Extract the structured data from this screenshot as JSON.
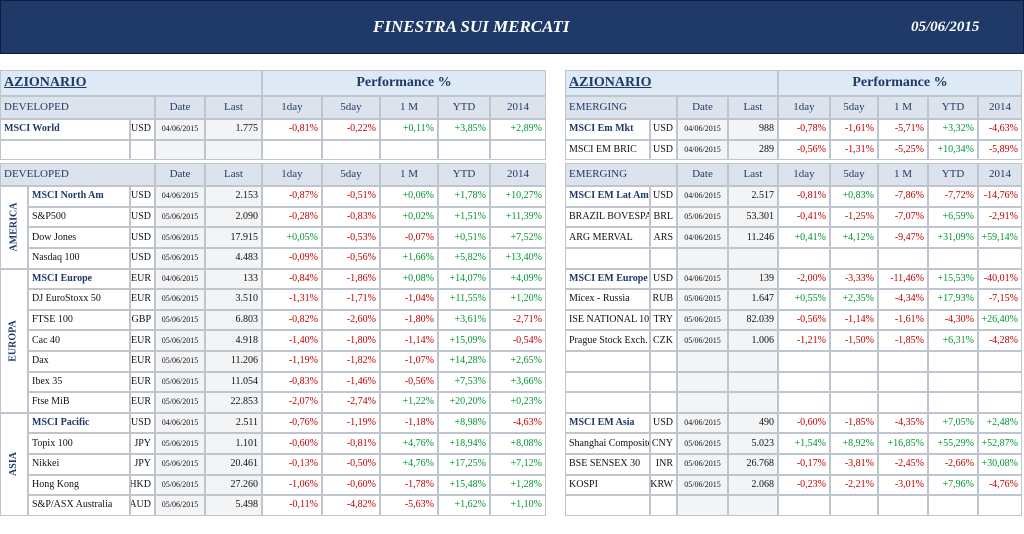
{
  "header": {
    "title": "FINESTRA SUI MERCATI",
    "date": "05/06/2015"
  },
  "panels": [
    {
      "title": "AZIONARIO",
      "performance": "Performance %",
      "blocks": [
        {
          "columns": [
            "DEVELOPED",
            "Date",
            "Last",
            "1day",
            "5day",
            "1 M",
            "YTD",
            "2014"
          ],
          "groups": [
            {
              "rows": [
                [
                  "MSCI World",
                  "USD",
                  "04/06/2015",
                  "1.775",
                  "-0,81%",
                  "-0,22%",
                  "+0,11%",
                  "+3,85%",
                  "+2,89%"
                ]
              ]
            }
          ]
        },
        {
          "columns": [
            "DEVELOPED",
            "Date",
            "Last",
            "1day",
            "5day",
            "1 M",
            "YTD",
            "2014"
          ],
          "groups": [
            {
              "label": "AMERICA",
              "rows": [
                [
                  "MSCI North Am",
                  "USD",
                  "04/06/2015",
                  "2.153",
                  "-0,87%",
                  "-0,51%",
                  "+0,06%",
                  "+1,78%",
                  "+10,27%"
                ],
                [
                  "S&P500",
                  "USD",
                  "05/06/2015",
                  "2.090",
                  "-0,28%",
                  "-0,83%",
                  "+0,02%",
                  "+1,51%",
                  "+11,39%"
                ],
                [
                  "Dow Jones",
                  "USD",
                  "05/06/2015",
                  "17.915",
                  "+0,05%",
                  "-0,53%",
                  "-0,07%",
                  "+0,51%",
                  "+7,52%"
                ],
                [
                  "Nasdaq 100",
                  "USD",
                  "05/06/2015",
                  "4.483",
                  "-0,09%",
                  "-0,56%",
                  "+1,66%",
                  "+5,82%",
                  "+13,40%"
                ]
              ]
            },
            {
              "label": "EUROPA",
              "rows": [
                [
                  "MSCI Europe",
                  "EUR",
                  "04/06/2015",
                  "133",
                  "-0,84%",
                  "-1,86%",
                  "+0,08%",
                  "+14,07%",
                  "+4,09%"
                ],
                [
                  "DJ EuroStoxx 50",
                  "EUR",
                  "05/06/2015",
                  "3.510",
                  "-1,31%",
                  "-1,71%",
                  "-1,04%",
                  "+11,55%",
                  "+1,20%"
                ],
                [
                  "FTSE 100",
                  "GBP",
                  "05/06/2015",
                  "6.803",
                  "-0,82%",
                  "-2,60%",
                  "-1,80%",
                  "+3,61%",
                  "-2,71%"
                ],
                [
                  "Cac 40",
                  "EUR",
                  "05/06/2015",
                  "4.918",
                  "-1,40%",
                  "-1,80%",
                  "-1,14%",
                  "+15,09%",
                  "-0,54%"
                ],
                [
                  "Dax",
                  "EUR",
                  "05/06/2015",
                  "11.206",
                  "-1,19%",
                  "-1,82%",
                  "-1,07%",
                  "+14,28%",
                  "+2,65%"
                ],
                [
                  "Ibex 35",
                  "EUR",
                  "05/06/2015",
                  "11.054",
                  "-0,83%",
                  "-1,46%",
                  "-0,56%",
                  "+7,53%",
                  "+3,66%"
                ],
                [
                  "Ftse MiB",
                  "EUR",
                  "05/06/2015",
                  "22.853",
                  "-2,07%",
                  "-2,74%",
                  "+1,22%",
                  "+20,20%",
                  "+0,23%"
                ]
              ]
            },
            {
              "label": "ASIA",
              "rows": [
                [
                  "MSCI Pacific",
                  "USD",
                  "04/06/2015",
                  "2.511",
                  "-0,76%",
                  "-1,19%",
                  "-1,18%",
                  "+8,98%",
                  "-4,63%"
                ],
                [
                  "Topix 100",
                  "JPY",
                  "05/06/2015",
                  "1.101",
                  "-0,60%",
                  "-0,81%",
                  "+4,76%",
                  "+18,94%",
                  "+8,08%"
                ],
                [
                  "Nikkei",
                  "JPY",
                  "05/06/2015",
                  "20.461",
                  "-0,13%",
                  "-0,50%",
                  "+4,76%",
                  "+17,25%",
                  "+7,12%"
                ],
                [
                  "Hong Kong",
                  "HKD",
                  "05/06/2015",
                  "27.260",
                  "-1,06%",
                  "-0,60%",
                  "-1,78%",
                  "+15,48%",
                  "+1,28%"
                ],
                [
                  "S&P/ASX Australia",
                  "AUD",
                  "05/06/2015",
                  "5.498",
                  "-0,11%",
                  "-4,82%",
                  "-5,63%",
                  "+1,62%",
                  "+1,10%"
                ]
              ]
            }
          ]
        }
      ]
    },
    {
      "title": "AZIONARIO",
      "performance": "Performance %",
      "blocks": [
        {
          "columns": [
            "EMERGING",
            "Date",
            "Last",
            "1day",
            "5day",
            "1 M",
            "YTD",
            "2014"
          ],
          "groups": [
            {
              "rows": [
                [
                  "MSCI Em Mkt",
                  "USD",
                  "04/06/2015",
                  "988",
                  "-0,78%",
                  "-1,61%",
                  "-5,71%",
                  "+3,32%",
                  "-4,63%"
                ],
                [
                  "MSCI EM BRIC",
                  "USD",
                  "04/06/2015",
                  "289",
                  "-0,56%",
                  "-1,31%",
                  "-5,25%",
                  "+10,34%",
                  "-5,89%"
                ]
              ]
            }
          ]
        },
        {
          "columns": [
            "EMERGING",
            "Date",
            "Last",
            "1day",
            "5day",
            "1 M",
            "YTD",
            "2014"
          ],
          "groups": [
            {
              "rows": [
                [
                  "MSCI EM Lat Am",
                  "USD",
                  "04/06/2015",
                  "2.517",
                  "-0,81%",
                  "+0,83%",
                  "-7,86%",
                  "-7,72%",
                  "-14,76%"
                ],
                [
                  "BRAZIL BOVESPA",
                  "BRL",
                  "05/06/2015",
                  "53.301",
                  "-0,41%",
                  "-1,25%",
                  "-7,07%",
                  "+6,59%",
                  "-2,91%"
                ],
                [
                  "ARG MERVAL",
                  "ARS",
                  "04/06/2015",
                  "11.246",
                  "+0,41%",
                  "+4,12%",
                  "-9,47%",
                  "+31,09%",
                  "+59,14%"
                ]
              ]
            },
            {
              "rows": [
                [
                  "MSCI EM Europe",
                  "USD",
                  "04/06/2015",
                  "139",
                  "-2,00%",
                  "-3,33%",
                  "-11,46%",
                  "+15,53%",
                  "-40,01%"
                ],
                [
                  "Micex - Russia",
                  "RUB",
                  "05/06/2015",
                  "1.647",
                  "+0,55%",
                  "+2,35%",
                  "-4,34%",
                  "+17,93%",
                  "-7,15%"
                ],
                [
                  "ISE NATIONAL 10",
                  "TRY",
                  "05/06/2015",
                  "82.039",
                  "-0,56%",
                  "-1,14%",
                  "-1,61%",
                  "-4,30%",
                  "+26,40%"
                ],
                [
                  "Prague Stock Exch.",
                  "CZK",
                  "05/06/2015",
                  "1.006",
                  "-1,21%",
                  "-1,50%",
                  "-1,85%",
                  "+6,31%",
                  "-4,28%"
                ]
              ]
            },
            {
              "rows": [
                [
                  "MSCI EM Asia",
                  "USD",
                  "04/06/2015",
                  "490",
                  "-0,60%",
                  "-1,85%",
                  "-4,35%",
                  "+7,05%",
                  "+2,48%"
                ],
                [
                  "Shanghai Composite",
                  "CNY",
                  "05/06/2015",
                  "5.023",
                  "+1,54%",
                  "+8,92%",
                  "+16,85%",
                  "+55,29%",
                  "+52,87%"
                ],
                [
                  "BSE SENSEX 30",
                  "INR",
                  "05/06/2015",
                  "26.768",
                  "-0,17%",
                  "-3,81%",
                  "-2,45%",
                  "-2,66%",
                  "+30,08%"
                ],
                [
                  "KOSPI",
                  "KRW",
                  "05/06/2015",
                  "2.068",
                  "-0,23%",
                  "-2,21%",
                  "-3,01%",
                  "+7,96%",
                  "-4,76%"
                ]
              ]
            }
          ]
        }
      ]
    }
  ]
}
